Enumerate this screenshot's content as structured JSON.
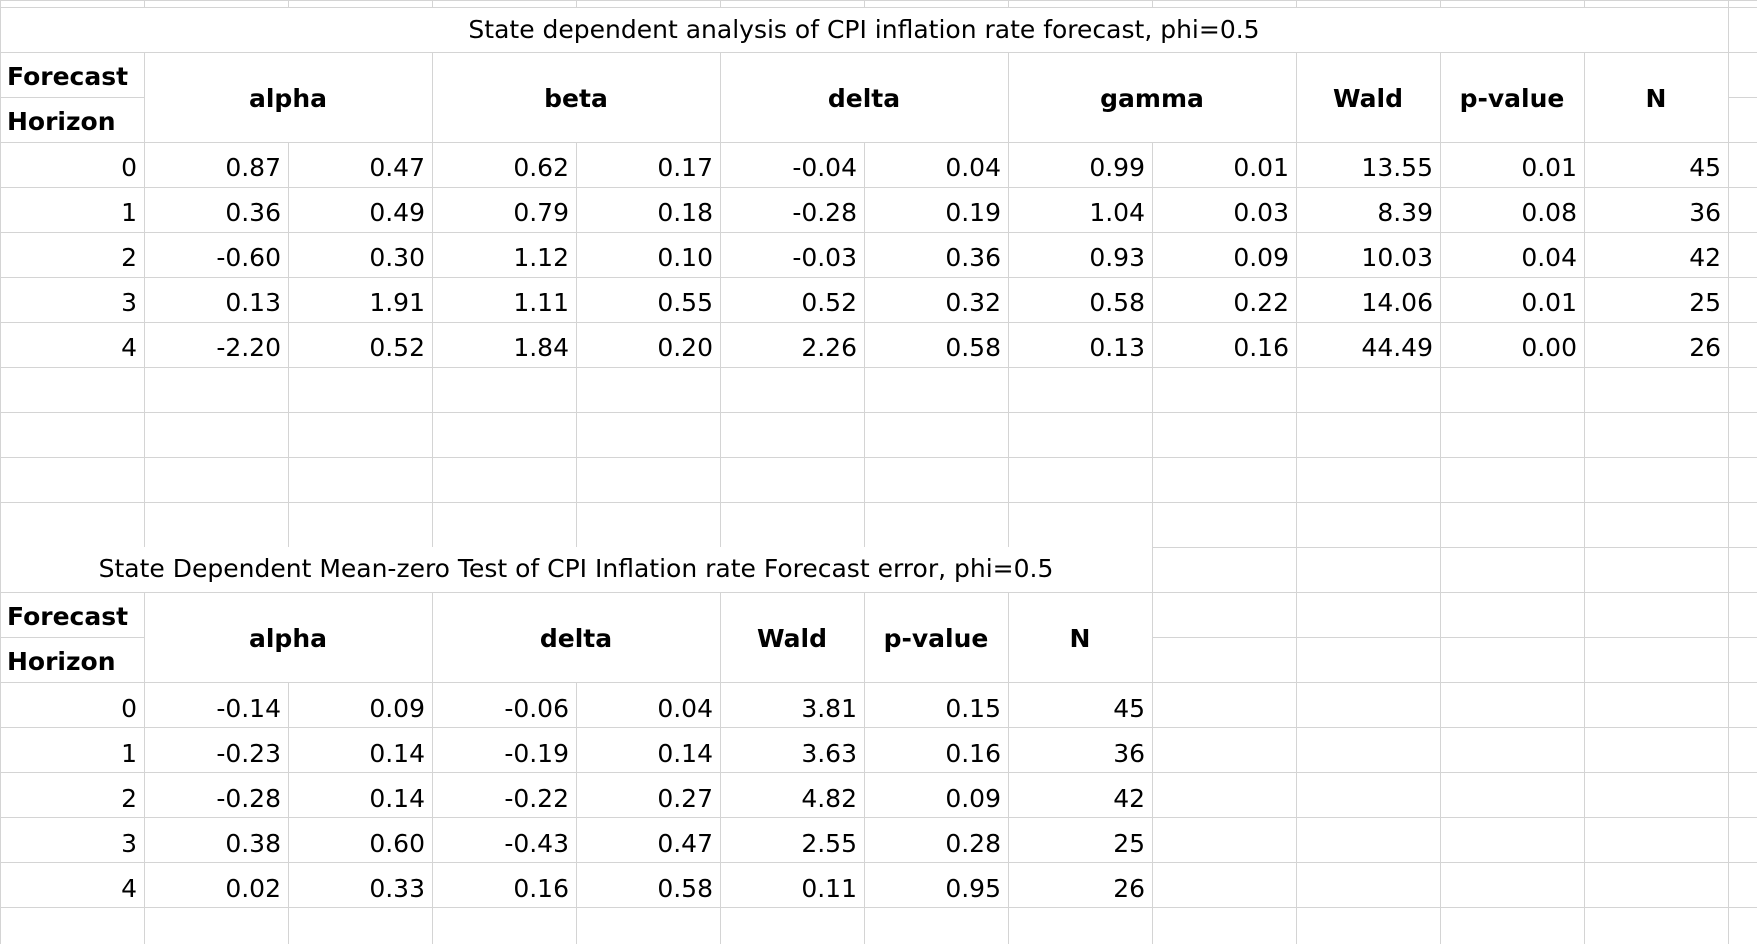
{
  "table1": {
    "title": "State dependent analysis of CPI inflation rate forecast, phi=0.5",
    "header": {
      "forecast": "Forecast",
      "horizon": "Horizon",
      "groups": [
        "alpha",
        "beta",
        "delta",
        "gamma",
        "Wald",
        "p-value",
        "N"
      ]
    },
    "rows": [
      [
        "0",
        "0.87",
        "0.47",
        "0.62",
        "0.17",
        "-0.04",
        "0.04",
        "0.99",
        "0.01",
        "13.55",
        "0.01",
        "45"
      ],
      [
        "1",
        "0.36",
        "0.49",
        "0.79",
        "0.18",
        "-0.28",
        "0.19",
        "1.04",
        "0.03",
        "8.39",
        "0.08",
        "36"
      ],
      [
        "2",
        "-0.60",
        "0.30",
        "1.12",
        "0.10",
        "-0.03",
        "0.36",
        "0.93",
        "0.09",
        "10.03",
        "0.04",
        "42"
      ],
      [
        "3",
        "0.13",
        "1.91",
        "1.11",
        "0.55",
        "0.52",
        "0.32",
        "0.58",
        "0.22",
        "14.06",
        "0.01",
        "25"
      ],
      [
        "4",
        "-2.20",
        "0.52",
        "1.84",
        "0.20",
        "2.26",
        "0.58",
        "0.13",
        "0.16",
        "44.49",
        "0.00",
        "26"
      ]
    ]
  },
  "table2": {
    "title": "State Dependent Mean-zero Test of CPI Inflation rate Forecast error, phi=0.5",
    "header": {
      "forecast": "Forecast",
      "horizon": "Horizon",
      "groups": [
        "alpha",
        "delta",
        "Wald",
        "p-value",
        "N"
      ]
    },
    "rows": [
      [
        "0",
        "-0.14",
        "0.09",
        "-0.06",
        "0.04",
        "3.81",
        "0.15",
        "45"
      ],
      [
        "1",
        "-0.23",
        "0.14",
        "-0.19",
        "0.14",
        "3.63",
        "0.16",
        "36"
      ],
      [
        "2",
        "-0.28",
        "0.14",
        "-0.22",
        "0.27",
        "4.82",
        "0.09",
        "42"
      ],
      [
        "3",
        "0.38",
        "0.60",
        "-0.43",
        "0.47",
        "2.55",
        "0.28",
        "25"
      ],
      [
        "4",
        "0.02",
        "0.33",
        "0.16",
        "0.58",
        "0.11",
        "0.95",
        "26"
      ]
    ]
  }
}
